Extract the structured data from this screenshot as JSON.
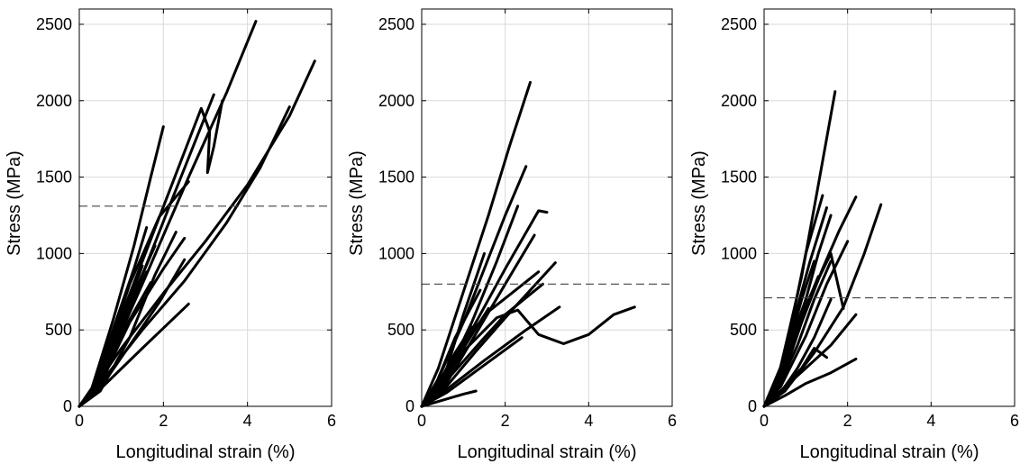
{
  "chart_data": [
    {
      "type": "line",
      "xlabel": "Longitudinal strain (%)",
      "ylabel": "Stress (MPa)",
      "xlim": [
        0,
        6
      ],
      "ylim": [
        0,
        2600
      ],
      "xticks": [
        0,
        2,
        4,
        6
      ],
      "yticks": [
        0,
        500,
        1000,
        1500,
        2000,
        2500
      ],
      "grid": true,
      "reference_line": {
        "style": "dashed",
        "y": 1310
      },
      "series": [
        {
          "x": [
            0,
            0.3,
            0.8,
            1.3,
            1.7,
            2.0
          ],
          "y": [
            0,
            120,
            560,
            1050,
            1500,
            1830
          ]
        },
        {
          "x": [
            0,
            0.3,
            0.8,
            1.5,
            2.2,
            2.9,
            3.1,
            3.05,
            3.2,
            3.4
          ],
          "y": [
            0,
            110,
            450,
            950,
            1450,
            1950,
            1800,
            1530,
            1700,
            2000
          ]
        },
        {
          "x": [
            0,
            0.5,
            1.5,
            2.6,
            3.5,
            4.2
          ],
          "y": [
            0,
            180,
            800,
            1500,
            2050,
            2520
          ]
        },
        {
          "x": [
            0,
            0.4,
            1.2,
            2.2,
            3.2
          ],
          "y": [
            0,
            140,
            650,
            1350,
            2040
          ]
        },
        {
          "x": [
            0,
            0.3,
            1.0,
            2.0,
            3.0,
            4.0,
            5.0,
            5.6
          ],
          "y": [
            0,
            100,
            380,
            740,
            1080,
            1450,
            1900,
            2260
          ]
        },
        {
          "x": [
            0,
            0.5,
            1.5,
            2.5,
            3.5,
            4.3,
            5.0
          ],
          "y": [
            0,
            150,
            500,
            820,
            1200,
            1560,
            1960
          ]
        },
        {
          "x": [
            0,
            0.4,
            1.2,
            1.9,
            2.6
          ],
          "y": [
            0,
            130,
            800,
            1240,
            1470
          ]
        },
        {
          "x": [
            0,
            0.5,
            1.2,
            1.8,
            2.3
          ],
          "y": [
            0,
            100,
            450,
            860,
            1140
          ]
        },
        {
          "x": [
            0,
            0.3,
            0.8,
            1.3,
            1.6
          ],
          "y": [
            0,
            100,
            500,
            900,
            1170
          ]
        },
        {
          "x": [
            0,
            0.4,
            1.0,
            1.5
          ],
          "y": [
            0,
            120,
            550,
            920
          ]
        },
        {
          "x": [
            0,
            0.4,
            1.0,
            1.6
          ],
          "y": [
            0,
            110,
            500,
            880
          ]
        },
        {
          "x": [
            0,
            0.5,
            1.2,
            1.9,
            2.5
          ],
          "y": [
            0,
            120,
            400,
            680,
            960
          ]
        },
        {
          "x": [
            0,
            0.6,
            1.5,
            2.6
          ],
          "y": [
            0,
            140,
            380,
            670
          ]
        },
        {
          "x": [
            0,
            0.5,
            1.1,
            1.7
          ],
          "y": [
            0,
            130,
            520,
            810
          ]
        },
        {
          "x": [
            0,
            0.4,
            1.0,
            1.4,
            1.8
          ],
          "y": [
            0,
            100,
            520,
            800,
            1050
          ]
        },
        {
          "x": [
            0,
            0.5,
            1.2,
            2.0,
            2.5
          ],
          "y": [
            0,
            150,
            550,
            900,
            1100
          ]
        }
      ]
    },
    {
      "type": "line",
      "xlabel": "Longitudinal strain (%)",
      "ylabel": "Stress (MPa)",
      "xlim": [
        0,
        6
      ],
      "ylim": [
        0,
        2600
      ],
      "xticks": [
        0,
        2,
        4,
        6
      ],
      "yticks": [
        0,
        500,
        1000,
        1500,
        2000,
        2500
      ],
      "grid": true,
      "reference_line": {
        "style": "dashed",
        "y": 800
      },
      "series": [
        {
          "x": [
            0,
            0.4,
            1.0,
            1.6,
            2.1,
            2.6
          ],
          "y": [
            0,
            250,
            750,
            1250,
            1700,
            2120
          ]
        },
        {
          "x": [
            0,
            0.4,
            1.0,
            1.5,
            2.0,
            2.5
          ],
          "y": [
            0,
            180,
            550,
            900,
            1250,
            1570
          ]
        },
        {
          "x": [
            0,
            0.5,
            1.2,
            1.8,
            2.3
          ],
          "y": [
            0,
            150,
            550,
            950,
            1310
          ]
        },
        {
          "x": [
            0,
            0.5,
            1.2,
            2.0,
            2.8,
            3.0
          ],
          "y": [
            0,
            120,
            500,
            900,
            1280,
            1270
          ]
        },
        {
          "x": [
            0,
            0.5,
            1.2,
            2.0,
            2.7
          ],
          "y": [
            0,
            110,
            430,
            800,
            1120
          ]
        },
        {
          "x": [
            0,
            0.5,
            1.3,
            2.2,
            3.2
          ],
          "y": [
            0,
            100,
            360,
            640,
            940
          ]
        },
        {
          "x": [
            0,
            0.4,
            1.0,
            1.8,
            2.3,
            2.8,
            3.4,
            4.0,
            4.6,
            5.1
          ],
          "y": [
            0,
            120,
            360,
            580,
            630,
            470,
            410,
            470,
            600,
            650
          ]
        },
        {
          "x": [
            0,
            0.5,
            1.5,
            2.5,
            3.3
          ],
          "y": [
            0,
            90,
            300,
            500,
            650
          ]
        },
        {
          "x": [
            0,
            0.4,
            1.0,
            1.6,
            2.2,
            2.8
          ],
          "y": [
            0,
            130,
            420,
            620,
            750,
            880
          ]
        },
        {
          "x": [
            0,
            0.5,
            1.5,
            2.0,
            2.9
          ],
          "y": [
            0,
            140,
            450,
            600,
            800
          ]
        },
        {
          "x": [
            0,
            0.3,
            0.8,
            1.4
          ],
          "y": [
            0,
            120,
            450,
            760
          ]
        },
        {
          "x": [
            0,
            0.4,
            1.0,
            1.6
          ],
          "y": [
            0,
            110,
            380,
            640
          ]
        },
        {
          "x": [
            0,
            0.6,
            1.5,
            2.4
          ],
          "y": [
            0,
            90,
            270,
            450
          ]
        },
        {
          "x": [
            0,
            0.3,
            0.8,
            1.2
          ],
          "y": [
            0,
            100,
            350,
            520
          ]
        },
        {
          "x": [
            0,
            0.5,
            1.0,
            1.3
          ],
          "y": [
            0,
            40,
            80,
            100
          ]
        },
        {
          "x": [
            0,
            0.5,
            1.0,
            1.5
          ],
          "y": [
            0,
            160,
            600,
            1000
          ]
        }
      ]
    },
    {
      "type": "line",
      "xlabel": "Longitudinal strain (%)",
      "ylabel": "Stress (MPa)",
      "xlim": [
        0,
        6
      ],
      "ylim": [
        0,
        2600
      ],
      "xticks": [
        0,
        2,
        4,
        6
      ],
      "yticks": [
        0,
        500,
        1000,
        1500,
        2000,
        2500
      ],
      "grid": true,
      "reference_line": {
        "style": "dashed",
        "y": 710
      },
      "series": [
        {
          "x": [
            0,
            0.4,
            0.9,
            1.3,
            1.7
          ],
          "y": [
            0,
            260,
            850,
            1450,
            2060
          ]
        },
        {
          "x": [
            0,
            0.3,
            0.7,
            1.0,
            1.4
          ],
          "y": [
            0,
            150,
            600,
            1000,
            1380
          ]
        },
        {
          "x": [
            0,
            0.3,
            0.7,
            1.1,
            1.5
          ],
          "y": [
            0,
            150,
            550,
            950,
            1300
          ]
        },
        {
          "x": [
            0,
            0.4,
            0.9,
            1.3,
            1.6
          ],
          "y": [
            0,
            180,
            600,
            1000,
            1250
          ]
        },
        {
          "x": [
            0,
            0.4,
            0.9,
            1.4,
            1.8,
            2.2
          ],
          "y": [
            0,
            150,
            550,
            900,
            1150,
            1370
          ]
        },
        {
          "x": [
            0,
            0.5,
            1.2,
            1.9,
            2.4,
            2.8
          ],
          "y": [
            0,
            100,
            350,
            650,
            1000,
            1320
          ]
        },
        {
          "x": [
            0,
            0.4,
            1.0,
            1.5,
            2.0
          ],
          "y": [
            0,
            130,
            460,
            800,
            1080
          ]
        },
        {
          "x": [
            0,
            0.3,
            0.8,
            1.2,
            1.6
          ],
          "y": [
            0,
            100,
            400,
            700,
            950
          ]
        },
        {
          "x": [
            0,
            0.5,
            1.0,
            1.6,
            2.2
          ],
          "y": [
            0,
            70,
            150,
            220,
            310
          ]
        },
        {
          "x": [
            0,
            0.4,
            1.0,
            1.6,
            2.2
          ],
          "y": [
            0,
            100,
            250,
            400,
            600
          ]
        },
        {
          "x": [
            0,
            0.3,
            0.7,
            1.0,
            1.3
          ],
          "y": [
            0,
            120,
            400,
            650,
            850
          ]
        },
        {
          "x": [
            0,
            0.4,
            0.9,
            1.2,
            1.5
          ],
          "y": [
            0,
            100,
            250,
            380,
            320
          ]
        },
        {
          "x": [
            0,
            0.3,
            0.7,
            1.1,
            1.6,
            1.9
          ],
          "y": [
            0,
            120,
            420,
            720,
            1000,
            640
          ]
        },
        {
          "x": [
            0,
            0.3,
            0.6,
            0.9,
            1.2
          ],
          "y": [
            0,
            130,
            400,
            700,
            950
          ]
        },
        {
          "x": [
            0,
            0.4,
            0.8,
            1.2,
            1.6
          ],
          "y": [
            0,
            90,
            250,
            450,
            700
          ]
        },
        {
          "x": [
            0,
            0.2,
            0.5,
            0.8,
            1.0
          ],
          "y": [
            0,
            80,
            300,
            550,
            700
          ]
        }
      ]
    }
  ]
}
